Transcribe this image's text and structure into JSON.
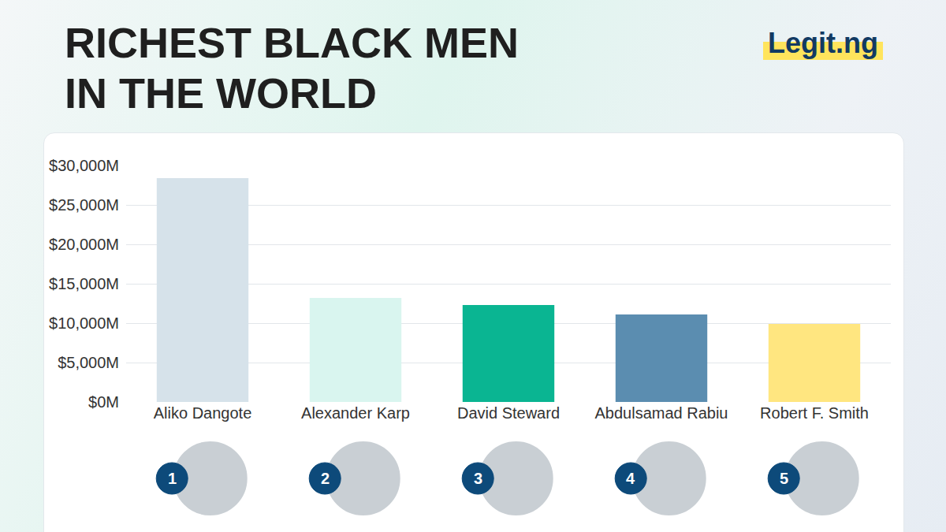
{
  "chart_data": {
    "type": "bar",
    "title": "RICHEST BLACK MEN IN THE WORLD",
    "logo": "Legit.ng",
    "categories": [
      "Aliko Dangote",
      "Alexander Karp",
      "David Steward",
      "Abdulsamad Rabiu",
      "Robert F. Smith"
    ],
    "values": [
      28400,
      13200,
      12300,
      11100,
      9900
    ],
    "colors": [
      "#d6e2ea",
      "#d9f5ef",
      "#0ab592",
      "#5b8db0",
      "#ffe680"
    ],
    "ranks": [
      1,
      2,
      3,
      4,
      5
    ],
    "ylim": [
      0,
      30000
    ],
    "yticks": [
      {
        "value": 0,
        "label": "$0M"
      },
      {
        "value": 5000,
        "label": "$5,000M"
      },
      {
        "value": 10000,
        "label": "$10,000M"
      },
      {
        "value": 15000,
        "label": "$15,000M"
      },
      {
        "value": 20000,
        "label": "$20,000M"
      },
      {
        "value": 25000,
        "label": "$25,000M"
      },
      {
        "value": 30000,
        "label": "$30,000M"
      }
    ],
    "grid": true
  }
}
